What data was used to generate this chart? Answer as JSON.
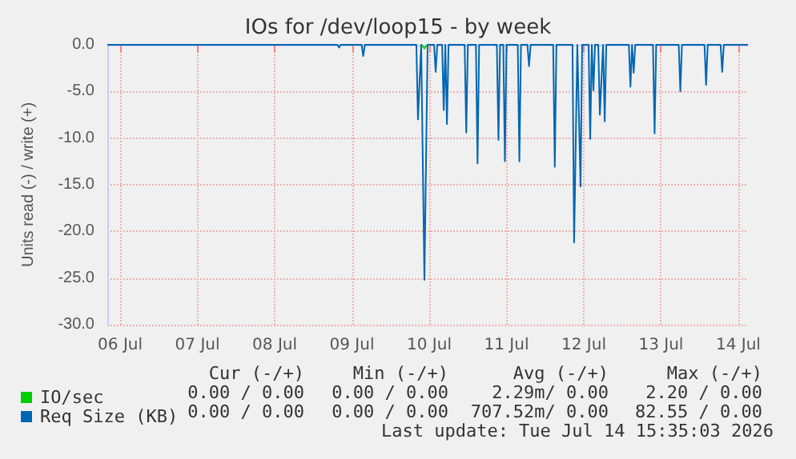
{
  "chart_data": {
    "type": "line",
    "title": "IOs for /dev/loop15 - by week",
    "ylabel": "Units read (-) / write (+)",
    "xlim": [
      "2026-07-06T08:00",
      "2026-07-14T15:00"
    ],
    "xticks": [
      {
        "value": "2026-07-06T12:00",
        "label": "06 Jul"
      },
      {
        "value": "2026-07-07T12:00",
        "label": "07 Jul"
      },
      {
        "value": "2026-07-08T12:00",
        "label": "08 Jul"
      },
      {
        "value": "2026-07-09T12:00",
        "label": "09 Jul"
      },
      {
        "value": "2026-07-10T12:00",
        "label": "10 Jul"
      },
      {
        "value": "2026-07-11T12:00",
        "label": "11 Jul"
      },
      {
        "value": "2026-07-12T12:00",
        "label": "12 Jul"
      },
      {
        "value": "2026-07-13T12:00",
        "label": "13 Jul"
      },
      {
        "value": "2026-07-14T12:00",
        "label": "14 Jul"
      }
    ],
    "ylim": [
      -30,
      0
    ],
    "yticks": [
      {
        "value": 0,
        "label": "0.0"
      },
      {
        "value": -5,
        "label": "-5.0"
      },
      {
        "value": -10,
        "label": "-10.0"
      },
      {
        "value": -15,
        "label": "-15.0"
      },
      {
        "value": -20,
        "label": "-20.0"
      },
      {
        "value": -25,
        "label": "-25.0"
      },
      {
        "value": -30,
        "label": "-30.0"
      }
    ],
    "grid": true,
    "legend": "bottom left",
    "marker": "none",
    "series": [
      {
        "name": "Req Size (KB)",
        "color": "#0066b3",
        "x": [
          "2026-07-06T08:00",
          "2026-07-09T07:30",
          "2026-07-09T08:00",
          "2026-07-09T08:30",
          "2026-07-09T15:00",
          "2026-07-09T15:30",
          "2026-07-09T16:00",
          "2026-07-10T08:00",
          "2026-07-10T08:30",
          "2026-07-10T09:30",
          "2026-07-10T10:30",
          "2026-07-10T11:30",
          "2026-07-10T13:30",
          "2026-07-10T14:00",
          "2026-07-10T14:30",
          "2026-07-10T16:00",
          "2026-07-10T16:30",
          "2026-07-10T17:00",
          "2026-07-10T17:30",
          "2026-07-10T18:00",
          "2026-07-10T23:00",
          "2026-07-10T23:30",
          "2026-07-11T00:00",
          "2026-07-11T02:30",
          "2026-07-11T03:00",
          "2026-07-11T03:30",
          "2026-07-11T09:00",
          "2026-07-11T09:30",
          "2026-07-11T10:00",
          "2026-07-11T11:00",
          "2026-07-11T11:30",
          "2026-07-11T12:00",
          "2026-07-11T15:30",
          "2026-07-11T16:00",
          "2026-07-11T16:30",
          "2026-07-11T18:30",
          "2026-07-11T19:00",
          "2026-07-11T19:30",
          "2026-07-12T02:30",
          "2026-07-12T03:00",
          "2026-07-12T03:30",
          "2026-07-12T08:30",
          "2026-07-12T09:00",
          "2026-07-12T10:00",
          "2026-07-12T11:00",
          "2026-07-12T11:30",
          "2026-07-12T13:30",
          "2026-07-12T14:00",
          "2026-07-12T14:30",
          "2026-07-12T15:00",
          "2026-07-12T15:30",
          "2026-07-12T16:30",
          "2026-07-12T17:00",
          "2026-07-12T18:00",
          "2026-07-12T18:30",
          "2026-07-12T19:00",
          "2026-07-13T02:00",
          "2026-07-13T02:30",
          "2026-07-13T03:00",
          "2026-07-13T03:30",
          "2026-07-13T04:00",
          "2026-07-13T09:30",
          "2026-07-13T10:00",
          "2026-07-13T10:30",
          "2026-07-13T17:30",
          "2026-07-13T18:00",
          "2026-07-13T18:30",
          "2026-07-14T01:30",
          "2026-07-14T02:00",
          "2026-07-14T02:30",
          "2026-07-14T06:30",
          "2026-07-14T07:00",
          "2026-07-14T07:30",
          "2026-07-14T15:00"
        ],
        "values": [
          0,
          0,
          -0.3,
          0,
          0,
          -1.2,
          0,
          0,
          -8.0,
          0,
          -25.2,
          0,
          0,
          -2.9,
          0,
          0,
          -7.0,
          0,
          -8.5,
          0,
          0,
          -9.4,
          0,
          0,
          -12.7,
          0,
          0,
          -10.2,
          0,
          0,
          -12.5,
          0,
          0,
          -12.5,
          0,
          0,
          -2.3,
          0,
          0,
          -13.1,
          0,
          0,
          -21.2,
          0,
          -15.2,
          0,
          0,
          -10.1,
          0,
          -4.9,
          0,
          0,
          -7.5,
          0,
          -8.2,
          0,
          0,
          -4.5,
          0,
          -3.0,
          0,
          0,
          -9.5,
          0,
          0,
          -5.0,
          0,
          0,
          -4.3,
          0,
          0,
          -2.9,
          0,
          0
        ]
      },
      {
        "name": "IO/sec",
        "color": "#00cc00",
        "x": [
          "2026-07-10T09:40",
          "2026-07-10T10:30",
          "2026-07-10T11:20"
        ],
        "values": [
          0,
          -0.4,
          0
        ]
      }
    ],
    "annotations": [
      "Cur (-/+)",
      "Min (-/+)",
      "Avg (-/+)",
      "Max (-/+)",
      "0.00 / 0.00",
      "0.00 / 0.00",
      "2.29m/ 0.00",
      "2.20 / 0.00",
      "0.00 / 0.00",
      "0.00 / 0.00",
      "707.52m/ 0.00",
      "82.55 / 0.00",
      "Last update: Tue Jul 14 15:35:03 2026"
    ]
  }
}
